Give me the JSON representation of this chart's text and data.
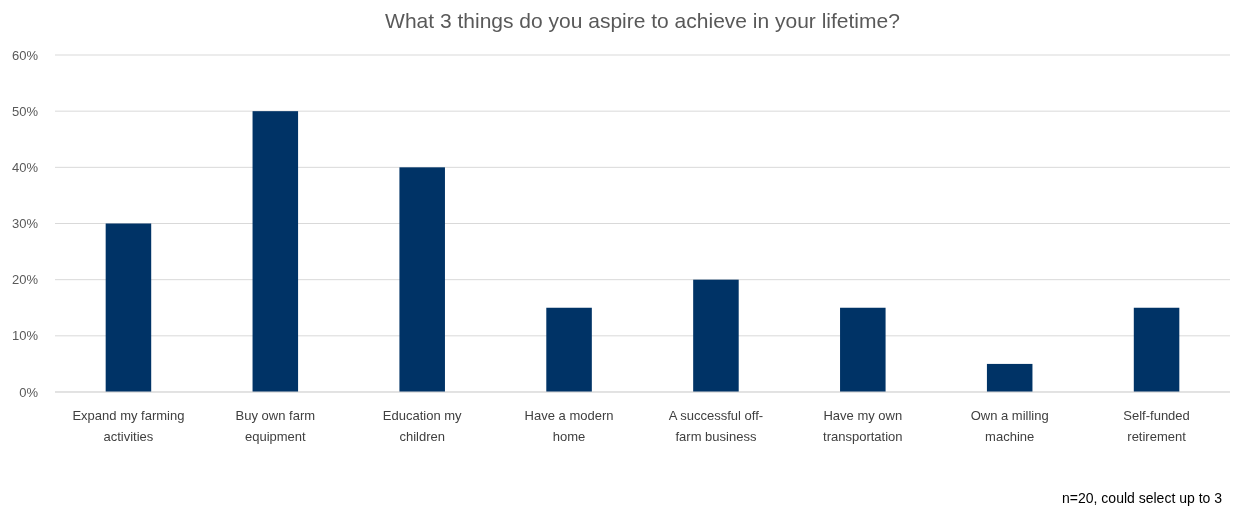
{
  "chart_data": {
    "type": "bar",
    "title": "What 3 things do you aspire to achieve in your lifetime?",
    "categories": [
      "Expand my farming activities",
      "Buy own farm equipment",
      "Education my children",
      "Have a modern home",
      "A successful off-farm business",
      "Have my own transportation",
      "Own a milling machine",
      "Self-funded retirement"
    ],
    "values": [
      30,
      50,
      40,
      15,
      20,
      15,
      5,
      15
    ],
    "color": "#003366",
    "ylim": [
      0,
      60
    ],
    "yticks": [
      {
        "value": 0,
        "label": "0%"
      },
      {
        "value": 10,
        "label": "10%"
      },
      {
        "value": 20,
        "label": "20%"
      },
      {
        "value": 30,
        "label": "30%"
      },
      {
        "value": 40,
        "label": "40%"
      },
      {
        "value": 50,
        "label": "50%"
      },
      {
        "value": 60,
        "label": "60%"
      }
    ],
    "grid": "y",
    "annotations": [
      "n=20, could select up to 3"
    ]
  }
}
